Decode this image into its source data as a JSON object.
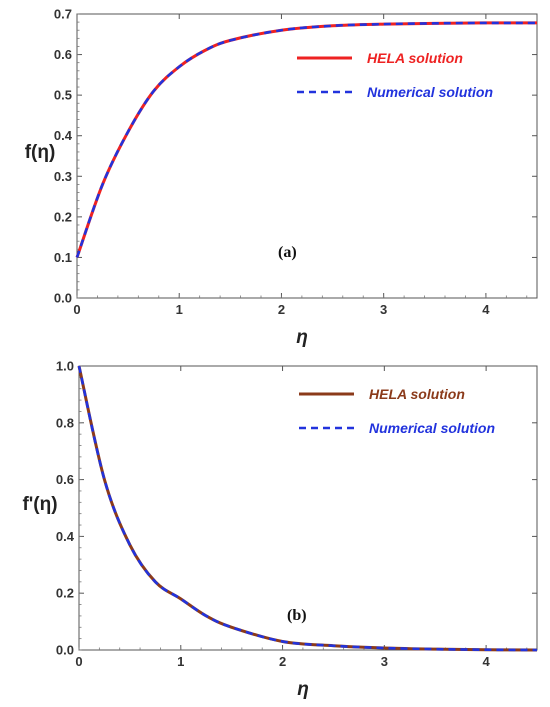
{
  "chart_data": [
    {
      "type": "line",
      "panel_label": "(a)",
      "ylabel": "f(η)",
      "xlabel": "η",
      "xlim": [
        0,
        4.5
      ],
      "ylim": [
        0,
        0.7
      ],
      "xticks": [
        "0",
        "1",
        "2",
        "3",
        "4"
      ],
      "yticks": [
        "0.0",
        "0.1",
        "0.2",
        "0.3",
        "0.4",
        "0.5",
        "0.6",
        "0.7"
      ],
      "legend_position": "top-right",
      "series": [
        {
          "name": "HELA solution",
          "color": "#ee2222",
          "style": "solid",
          "x": [
            0,
            0.25,
            0.5,
            0.75,
            1,
            1.25,
            1.5,
            2,
            2.5,
            3,
            3.5,
            4,
            4.5
          ],
          "y": [
            0.1,
            0.28,
            0.41,
            0.51,
            0.57,
            0.61,
            0.635,
            0.66,
            0.671,
            0.675,
            0.677,
            0.678,
            0.678
          ]
        },
        {
          "name": "Numerical solution",
          "color": "#2233dd",
          "style": "dashed",
          "x": [
            0,
            0.25,
            0.5,
            0.75,
            1,
            1.25,
            1.5,
            2,
            2.5,
            3,
            3.5,
            4,
            4.5
          ],
          "y": [
            0.1,
            0.28,
            0.41,
            0.51,
            0.57,
            0.61,
            0.635,
            0.66,
            0.671,
            0.675,
            0.677,
            0.678,
            0.678
          ]
        }
      ]
    },
    {
      "type": "line",
      "panel_label": "(b)",
      "ylabel": "f'(η)",
      "xlabel": "η",
      "xlim": [
        0,
        4.5
      ],
      "ylim": [
        0,
        1.0
      ],
      "xticks": [
        "0",
        "1",
        "2",
        "3",
        "4"
      ],
      "yticks": [
        "0.0",
        "0.2",
        "0.4",
        "0.6",
        "0.8",
        "1.0"
      ],
      "legend_position": "top-right",
      "series": [
        {
          "name": "HELA solution",
          "color": "#8b3a1a",
          "style": "solid",
          "x": [
            0,
            0.25,
            0.5,
            0.75,
            1,
            1.25,
            1.5,
            2,
            2.5,
            3,
            3.5,
            4,
            4.5
          ],
          "y": [
            1.0,
            0.6,
            0.37,
            0.24,
            0.18,
            0.12,
            0.08,
            0.03,
            0.015,
            0.007,
            0.003,
            0.001,
            0.0
          ]
        },
        {
          "name": "Numerical solution",
          "color": "#2233dd",
          "style": "dashed",
          "x": [
            0,
            0.25,
            0.5,
            0.75,
            1,
            1.25,
            1.5,
            2,
            2.5,
            3,
            3.5,
            4,
            4.5
          ],
          "y": [
            1.0,
            0.6,
            0.37,
            0.24,
            0.18,
            0.12,
            0.08,
            0.03,
            0.015,
            0.007,
            0.003,
            0.001,
            0.0
          ]
        }
      ]
    }
  ]
}
